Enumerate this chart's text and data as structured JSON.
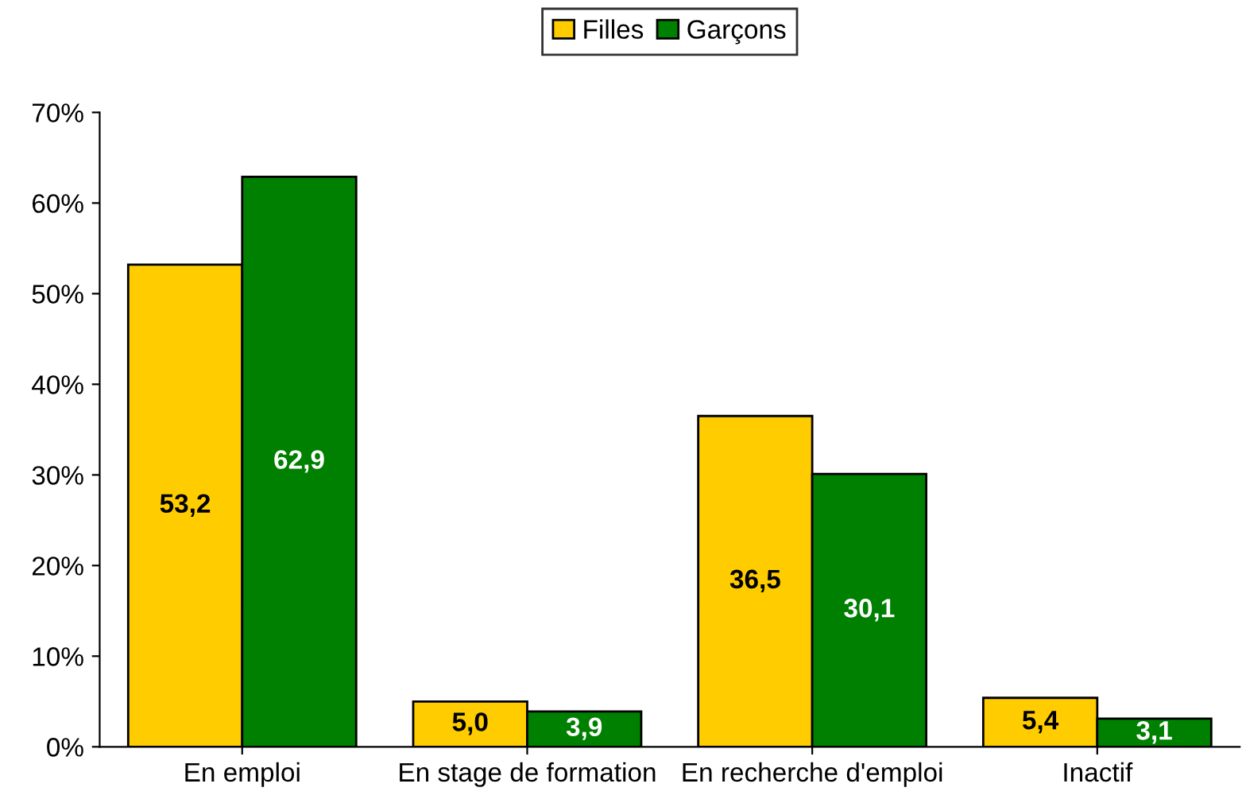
{
  "chart_data": {
    "type": "bar",
    "categories": [
      "En emploi",
      "En stage de formation",
      "En recherche d'emploi",
      "Inactif"
    ],
    "series": [
      {
        "name": "Filles",
        "color": "#ffcc00",
        "values": [
          53.2,
          5.0,
          36.5,
          5.4
        ],
        "value_labels": [
          "53,2",
          "5,0",
          "36,5",
          "5,4"
        ]
      },
      {
        "name": "Garçons",
        "color": "#008000",
        "values": [
          62.9,
          3.9,
          30.1,
          3.1
        ],
        "value_labels": [
          "62,9",
          "3,9",
          "30,1",
          "3,1"
        ]
      }
    ],
    "ylim": [
      0,
      70
    ],
    "yticks": [
      {
        "value": 0,
        "label": "0%"
      },
      {
        "value": 10,
        "label": "10%"
      },
      {
        "value": 20,
        "label": "20%"
      },
      {
        "value": 30,
        "label": "30%"
      },
      {
        "value": 40,
        "label": "40%"
      },
      {
        "value": 50,
        "label": "50%"
      },
      {
        "value": 60,
        "label": "60%"
      },
      {
        "value": 70,
        "label": "70%"
      }
    ],
    "grid": false,
    "legend": "top"
  }
}
